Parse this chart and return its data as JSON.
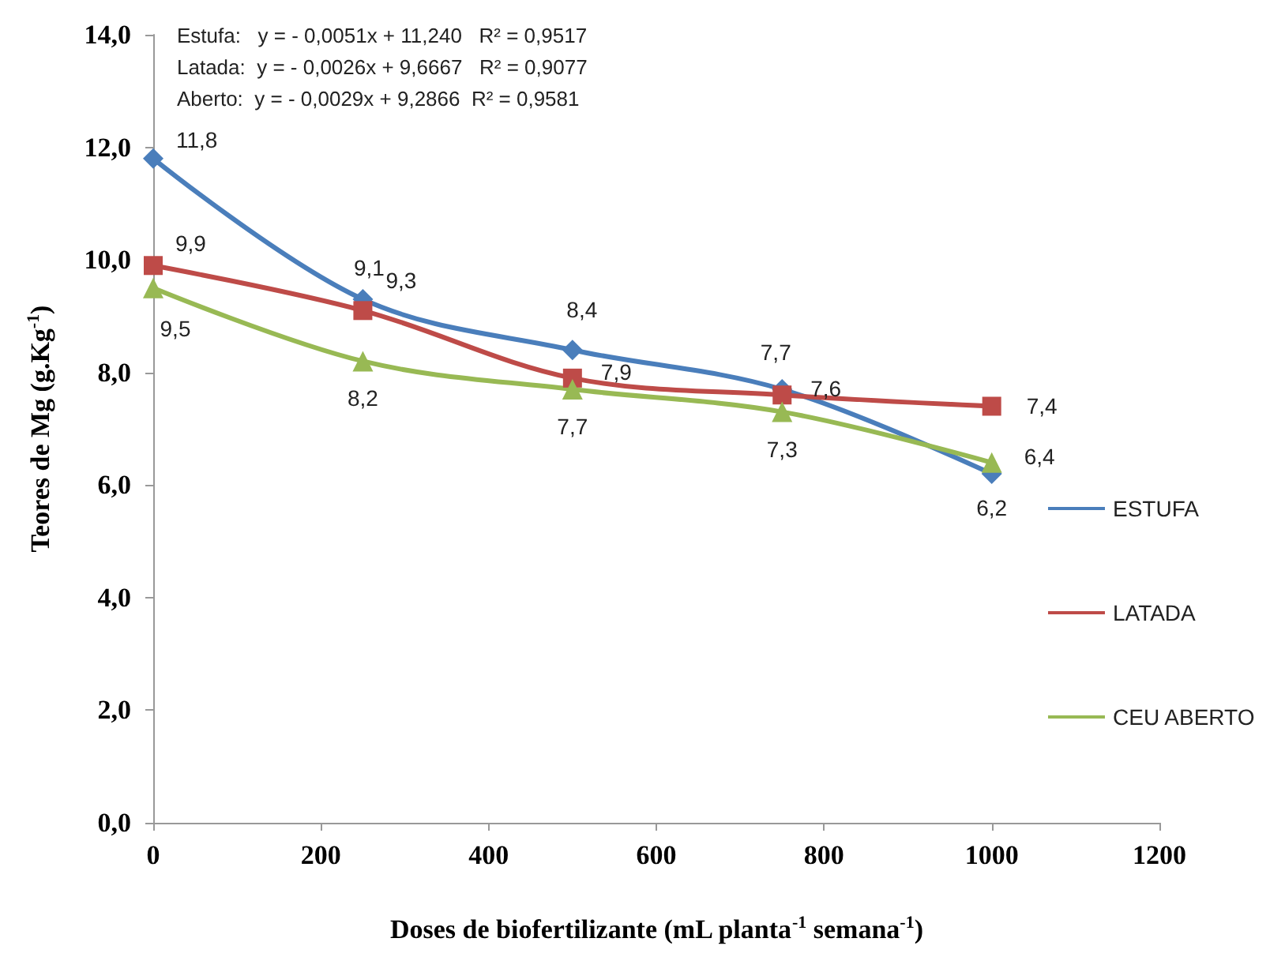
{
  "chart_data": {
    "type": "line",
    "xlabel": "Doses de biofertilizante (mL planta$^{-1}$ semana$^{-1}$)",
    "ylabel": "Teores de Mg (g.Kg$^{-1}$)",
    "x": [
      0,
      250,
      500,
      750,
      1000
    ],
    "series": [
      {
        "name": "ESTUFA",
        "color": "#4a7ebb",
        "marker": "diamond",
        "values": [
          11.8,
          9.3,
          8.4,
          7.7,
          6.2
        ],
        "value_labels": [
          "11,8",
          "9,3",
          "8,4",
          "7,7",
          "6,2"
        ]
      },
      {
        "name": "LATADA",
        "color": "#be4b48",
        "marker": "square",
        "values": [
          9.9,
          9.1,
          7.9,
          7.6,
          7.4
        ],
        "value_labels": [
          "9,9",
          "9,1",
          "7,9",
          "7,6",
          "7,4"
        ]
      },
      {
        "name": "CEU ABERTO",
        "color": "#98b954",
        "marker": "triangle",
        "values": [
          9.5,
          8.2,
          7.7,
          7.3,
          6.4
        ],
        "value_labels": [
          "9,5",
          "8,2",
          "7,7",
          "7,3",
          "6,4"
        ]
      }
    ],
    "xlim": [
      0,
      1200
    ],
    "xticks": [
      0,
      200,
      400,
      600,
      800,
      1000,
      1200
    ],
    "ylim": [
      0,
      14
    ],
    "yticks": [
      {
        "value": 0,
        "label": "0,0"
      },
      {
        "value": 2,
        "label": "2,0"
      },
      {
        "value": 4,
        "label": "4,0"
      },
      {
        "value": 6,
        "label": "6,0"
      },
      {
        "value": 8,
        "label": "8,0"
      },
      {
        "value": 10,
        "label": "10,0"
      },
      {
        "value": 12,
        "label": "12,0"
      },
      {
        "value": 14,
        "label": "14,0"
      }
    ],
    "annotations": [
      "Estufa:   y = - 0,0051x + 11,240   R² = 0,9517",
      "Latada:  y = - 0,0026x + 9,6667   R² = 0,9077",
      "Aberto:  y = - 0,0029x + 9,2866  R² = 0,9581"
    ],
    "grid": false,
    "legend": "right",
    "line_style": "solid"
  }
}
